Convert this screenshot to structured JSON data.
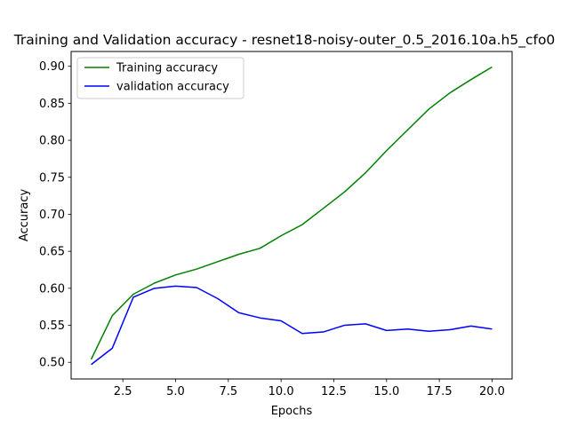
{
  "chart_data": {
    "type": "line",
    "title": "Training and Validation accuracy - resnet18-noisy-outer_0.5_2016.10a.h5_cfo0",
    "xlabel": "Epochs",
    "ylabel": "Accuracy",
    "xlim": [
      0.05,
      20.95
    ],
    "ylim": [
      0.4775,
      0.92
    ],
    "xticks": [
      2.5,
      5.0,
      7.5,
      10.0,
      12.5,
      15.0,
      17.5,
      20.0
    ],
    "xtick_labels": [
      "2.5",
      "5.0",
      "7.5",
      "10.0",
      "12.5",
      "15.0",
      "17.5",
      "20.0"
    ],
    "yticks": [
      0.5,
      0.55,
      0.6,
      0.65,
      0.7,
      0.75,
      0.8,
      0.85,
      0.9
    ],
    "ytick_labels": [
      "0.50",
      "0.55",
      "0.60",
      "0.65",
      "0.70",
      "0.75",
      "0.80",
      "0.85",
      "0.90"
    ],
    "grid": false,
    "legend_position": "top-left",
    "x": [
      1,
      2,
      3,
      4,
      5,
      6,
      7,
      8,
      9,
      10,
      11,
      12,
      13,
      14,
      15,
      16,
      17,
      18,
      19,
      20
    ],
    "series": [
      {
        "name": "Training accuracy",
        "color": "#008000",
        "values": [
          0.504,
          0.563,
          0.592,
          0.607,
          0.618,
          0.626,
          0.636,
          0.646,
          0.654,
          0.671,
          0.686,
          0.708,
          0.73,
          0.756,
          0.786,
          0.814,
          0.842,
          0.864,
          0.882,
          0.899
        ]
      },
      {
        "name": "validation accuracy",
        "color": "#0000ff",
        "values": [
          0.497,
          0.519,
          0.588,
          0.6,
          0.603,
          0.601,
          0.586,
          0.567,
          0.56,
          0.556,
          0.539,
          0.541,
          0.55,
          0.552,
          0.543,
          0.545,
          0.542,
          0.544,
          0.549,
          0.545
        ]
      }
    ]
  }
}
